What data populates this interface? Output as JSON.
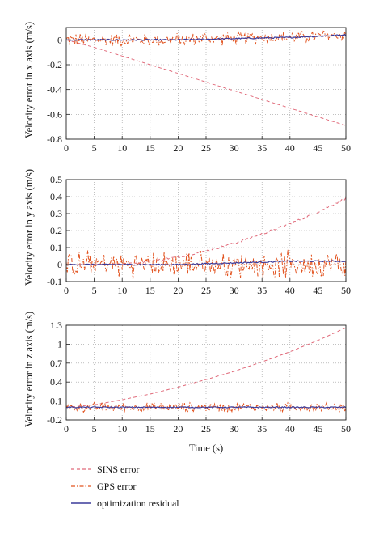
{
  "chart_data": [
    {
      "type": "line",
      "ylabel": "Velocity error in x axis (m/s)",
      "xlabel": "",
      "xlim": [
        0,
        50
      ],
      "ylim": [
        -0.8,
        0.1
      ],
      "xticks": [
        0,
        5,
        10,
        15,
        20,
        25,
        30,
        35,
        40,
        45,
        50
      ],
      "yticks": [
        -0.8,
        -0.6,
        -0.4,
        -0.2,
        0
      ],
      "grid": true,
      "series": [
        {
          "name": "SINS error",
          "x": [
            0,
            5,
            10,
            15,
            20,
            25,
            30,
            35,
            40,
            45,
            50
          ],
          "values": [
            0,
            -0.06,
            -0.13,
            -0.2,
            -0.27,
            -0.34,
            -0.41,
            -0.48,
            -0.55,
            -0.62,
            -0.69
          ]
        },
        {
          "name": "GPS error",
          "x": [
            0,
            5,
            10,
            15,
            20,
            25,
            30,
            35,
            40,
            45,
            50
          ],
          "values": [
            0,
            0,
            0,
            0,
            0,
            0.01,
            0.01,
            0.02,
            0.02,
            0.03,
            0.04
          ],
          "noise": 0.05
        },
        {
          "name": "optimization residual",
          "x": [
            0,
            5,
            10,
            15,
            20,
            25,
            30,
            35,
            40,
            45,
            50
          ],
          "values": [
            0,
            0,
            0,
            0,
            0,
            0.005,
            0.01,
            0.015,
            0.02,
            0.03,
            0.04
          ]
        }
      ]
    },
    {
      "type": "line",
      "ylabel": "Velocity error in y axis (m/s)",
      "xlabel": "",
      "xlim": [
        0,
        50
      ],
      "ylim": [
        -0.1,
        0.5
      ],
      "xticks": [
        0,
        5,
        10,
        15,
        20,
        25,
        30,
        35,
        40,
        45,
        50
      ],
      "yticks": [
        -0.1,
        0,
        0.1,
        0.2,
        0.3,
        0.4,
        0.5
      ],
      "grid": true,
      "series": [
        {
          "name": "SINS error",
          "x": [
            0,
            5,
            10,
            15,
            20,
            25,
            30,
            35,
            40,
            45,
            50
          ],
          "values": [
            0,
            0,
            0.005,
            0.02,
            0.045,
            0.08,
            0.125,
            0.18,
            0.24,
            0.31,
            0.39
          ]
        },
        {
          "name": "GPS error",
          "x": [
            0,
            5,
            10,
            15,
            20,
            25,
            30,
            35,
            40,
            45,
            50
          ],
          "values": [
            0,
            0,
            0,
            0,
            0,
            0,
            0,
            0,
            0,
            0,
            0
          ],
          "noise": 0.07
        },
        {
          "name": "optimization residual",
          "x": [
            0,
            5,
            10,
            15,
            20,
            25,
            30,
            35,
            40,
            45,
            50
          ],
          "values": [
            0,
            0,
            0,
            0,
            0,
            0.005,
            0.01,
            0.015,
            0.02,
            0.02,
            0.02
          ]
        }
      ]
    },
    {
      "type": "line",
      "ylabel": "Velocity error in z axis (m/s)",
      "xlabel": "Time (s)",
      "xlim": [
        0,
        50
      ],
      "ylim": [
        -0.2,
        1.3
      ],
      "xticks": [
        0,
        5,
        10,
        15,
        20,
        25,
        30,
        35,
        40,
        45,
        50
      ],
      "yticks": [
        -0.2,
        0.1,
        0.4,
        0.7,
        1,
        1.3
      ],
      "grid": true,
      "series": [
        {
          "name": "SINS error",
          "x": [
            0,
            5,
            10,
            15,
            20,
            25,
            30,
            35,
            40,
            45,
            50
          ],
          "values": [
            0,
            0.04,
            0.12,
            0.21,
            0.32,
            0.44,
            0.57,
            0.72,
            0.88,
            1.06,
            1.26
          ]
        },
        {
          "name": "GPS error",
          "x": [
            0,
            5,
            10,
            15,
            20,
            25,
            30,
            35,
            40,
            45,
            50
          ],
          "values": [
            0,
            0,
            0,
            0,
            0,
            0,
            0,
            0,
            0,
            0,
            0
          ],
          "noise": 0.07
        },
        {
          "name": "optimization residual",
          "x": [
            0,
            5,
            10,
            15,
            20,
            25,
            30,
            35,
            40,
            45,
            50
          ],
          "values": [
            0,
            0,
            0,
            0,
            0,
            0,
            0,
            0,
            0,
            0,
            0
          ]
        }
      ]
    }
  ],
  "legend": [
    {
      "name": "SINS error",
      "color": "#e06a7a",
      "style": "dashed"
    },
    {
      "name": "GPS error",
      "color": "#e2531f",
      "style": "dashdot"
    },
    {
      "name": "optimization residual",
      "color": "#3a3a9a",
      "style": "solid"
    }
  ],
  "colors": {
    "sins": "#e06a7a",
    "gps": "#e2531f",
    "residual": "#3a3a9a",
    "grid": "#9a9a9a"
  }
}
